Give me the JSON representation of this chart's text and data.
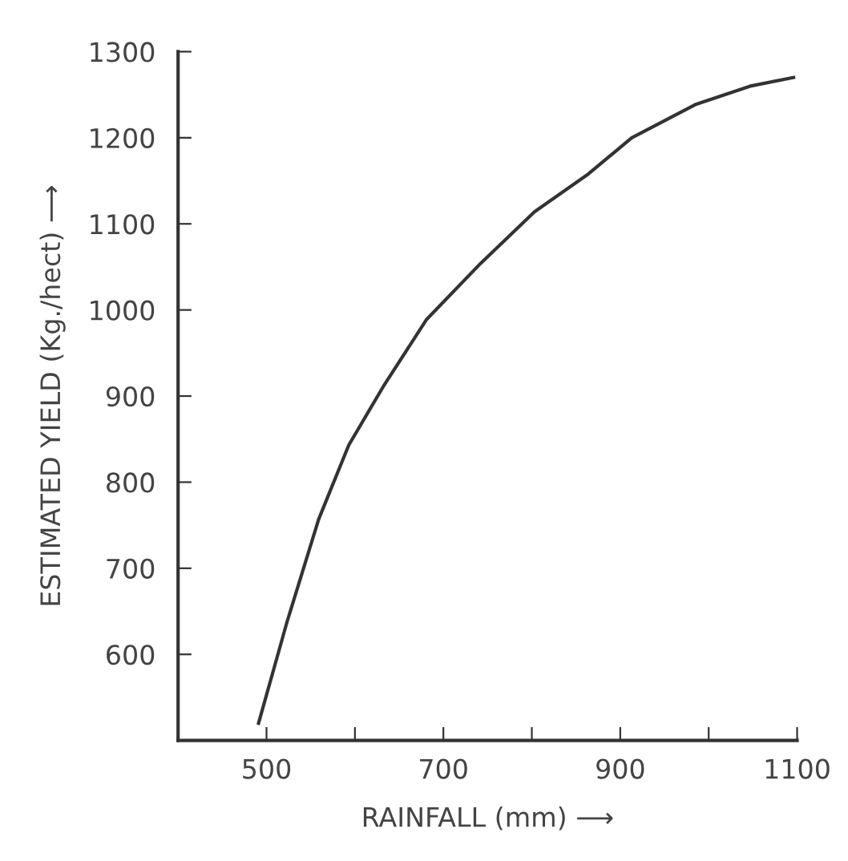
{
  "chart_data": {
    "type": "line",
    "xlabel": "RAINFALL (mm) ⟶",
    "ylabel": "ESTIMATED YIELD (Kg./hect) ⟶",
    "x": [
      491,
      523,
      559,
      593,
      632,
      681,
      742,
      803,
      864,
      913,
      986,
      1047,
      1096
    ],
    "series": [
      {
        "color": "#333333",
        "values": [
          520,
          637,
          757,
          843,
          911,
          989,
          1054,
          1114,
          1158,
          1200,
          1239,
          1260,
          1270
        ]
      }
    ],
    "xlim": [
      400,
      1100
    ],
    "ylim": [
      500,
      1300
    ],
    "xticks": [
      500,
      {
        "value": 600,
        "label": null
      },
      700,
      {
        "value": 800,
        "label": null
      },
      900,
      {
        "value": 1000,
        "label": null
      },
      1100
    ],
    "yticks": [
      600,
      700,
      800,
      900,
      1000,
      1100,
      1200,
      1300
    ],
    "grid": false,
    "legend": false,
    "marker": "none",
    "line_style": "solid"
  }
}
